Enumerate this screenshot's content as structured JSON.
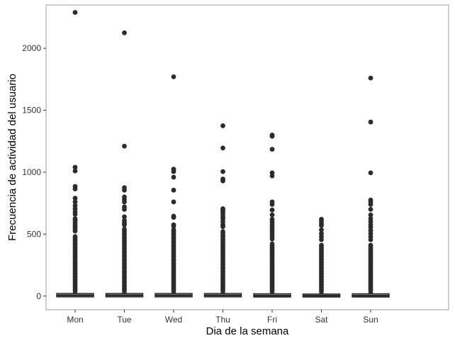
{
  "chart_data": {
    "type": "boxplot",
    "title": "",
    "xlabel": "Dia de la semana",
    "ylabel": "Frecuencia de actividad del usuario",
    "categories": [
      "Mon",
      "Tue",
      "Wed",
      "Thu",
      "Fri",
      "Sat",
      "Sun"
    ],
    "ylim": [
      -110,
      2350
    ],
    "yticks": [
      0,
      500,
      1000,
      1500,
      2000
    ],
    "grid": false,
    "legend": "none",
    "colors": {
      "mark": "#2b2b2b",
      "panel_border": "#9e9e9e",
      "background": "#ffffff"
    },
    "boxes": [
      {
        "category": "Mon",
        "q1": 2,
        "median": 6,
        "q3": 12,
        "whisker_low": 0,
        "whisker_high": 25,
        "dense_outlier_top": 500,
        "outliers": [
          2290,
          1040,
          1010,
          885,
          865,
          790,
          760,
          730,
          705,
          680,
          660,
          625,
          610,
          590,
          570,
          555,
          540,
          525
        ]
      },
      {
        "category": "Tue",
        "q1": 2,
        "median": 6,
        "q3": 12,
        "whisker_low": 0,
        "whisker_high": 25,
        "dense_outlier_top": 560,
        "outliers": [
          2125,
          1210,
          875,
          855,
          800,
          780,
          760,
          720,
          700,
          640,
          610,
          590,
          575
        ]
      },
      {
        "category": "Wed",
        "q1": 2,
        "median": 6,
        "q3": 12,
        "whisker_low": 0,
        "whisker_high": 25,
        "dense_outlier_top": 555,
        "outliers": [
          1770,
          1025,
          1005,
          960,
          855,
          760,
          645,
          635,
          575,
          565
        ]
      },
      {
        "category": "Thu",
        "q1": 2,
        "median": 6,
        "q3": 12,
        "whisker_low": 0,
        "whisker_high": 25,
        "dense_outlier_top": 540,
        "outliers": [
          1375,
          1195,
          1005,
          945,
          930,
          705,
          690,
          675,
          660,
          640,
          625,
          600,
          575,
          560
        ]
      },
      {
        "category": "Fri",
        "q1": 1,
        "median": 4,
        "q3": 10,
        "whisker_low": 0,
        "whisker_high": 22,
        "dense_outlier_top": 440,
        "outliers": [
          1300,
          1290,
          1185,
          995,
          970,
          760,
          740,
          695,
          655,
          620,
          600,
          580,
          560,
          540,
          520,
          500,
          480,
          460
        ]
      },
      {
        "category": "Sat",
        "q1": 1,
        "median": 3,
        "q3": 8,
        "whisker_low": 0,
        "whisker_high": 18,
        "dense_outlier_top": 430,
        "outliers": [
          620,
          600,
          585,
          570,
          535,
          505,
          480,
          455
        ]
      },
      {
        "category": "Sun",
        "q1": 1,
        "median": 4,
        "q3": 10,
        "whisker_low": 0,
        "whisker_high": 22,
        "dense_outlier_top": 430,
        "outliers": [
          1760,
          1405,
          995,
          775,
          760,
          740,
          700,
          655,
          625,
          600,
          575,
          555,
          530,
          505,
          480,
          455
        ]
      }
    ]
  }
}
